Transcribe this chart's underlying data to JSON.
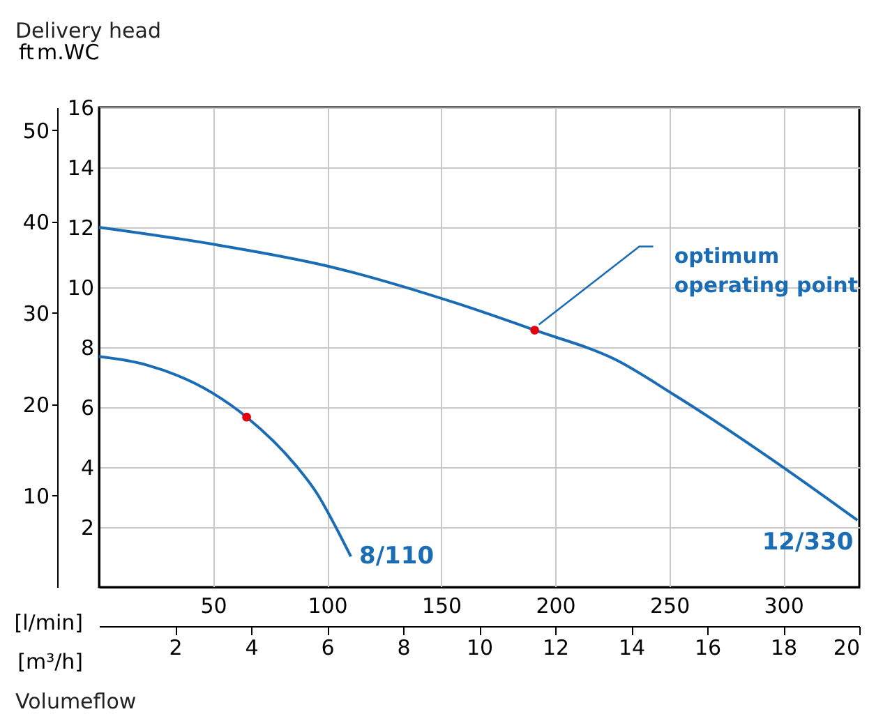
{
  "chart_data": {
    "type": "line",
    "xlabel": "[l/min]",
    "x2label": "[m³/h]",
    "ylabel": "m.WC",
    "y2label": "ft",
    "xlim": [
      0,
      333.3
    ],
    "xticks": [
      50,
      100,
      150,
      200,
      250,
      300
    ],
    "x2lim": [
      0,
      20
    ],
    "x2ticks": [
      2,
      4,
      6,
      8,
      10,
      12,
      14,
      16,
      18,
      20
    ],
    "ylim": [
      0,
      16
    ],
    "yticks": [
      2,
      4,
      6,
      8,
      10,
      12,
      14,
      16
    ],
    "y2lim": [
      0,
      52.49
    ],
    "y2ticks": [
      10,
      20,
      30,
      40,
      50
    ],
    "grid": true,
    "series": [
      {
        "name": "8/110",
        "color": "#1a6db4",
        "x": [
          0,
          20.8,
          49.6,
          64.7,
          85.9,
          96,
          102.2,
          110.4
        ],
        "values": [
          7.69,
          7.41,
          6.48,
          5.67,
          4.09,
          3.07,
          2.23,
          1.02
        ]
      },
      {
        "name": "12/330",
        "color": "#1a6db4",
        "x": [
          0,
          49.6,
          100,
          157,
          191,
          226.6,
          252,
          302.5,
          332.5
        ],
        "values": [
          12.0,
          11.44,
          10.71,
          9.46,
          8.57,
          7.58,
          6.42,
          3.86,
          2.23
        ]
      },
      {
        "type": "scatter",
        "marker": "circle",
        "color": "#e3000f",
        "x": [
          64.7,
          191
        ],
        "values": [
          5.67,
          8.57
        ]
      }
    ],
    "annotations": [
      "Delivery head",
      "Volumeflow",
      {
        "text": "optimum\noperating point",
        "x": 191,
        "y": 8.57
      }
    ]
  }
}
